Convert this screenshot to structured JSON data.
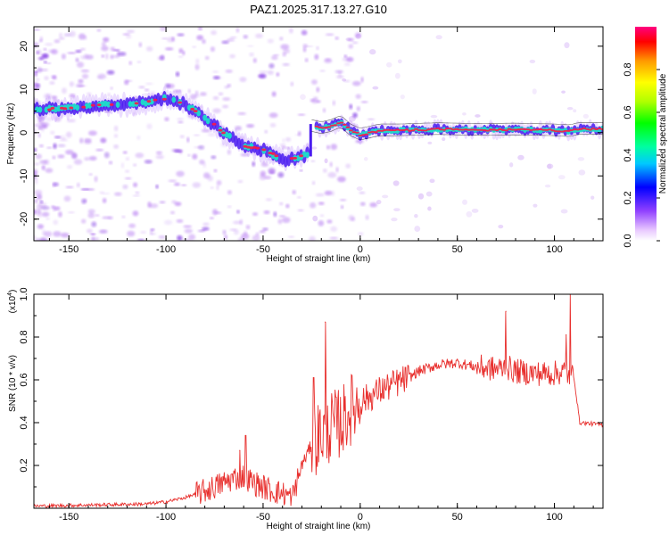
{
  "title": "PAZ1.2025.317.13.27.G10",
  "colors": {
    "snr_line": "#e8302e",
    "track_core": "#ff1744",
    "track_mid": "#19e6c8",
    "track_edge": "#4a1cf0",
    "speckle": "#b070f0",
    "axis": "#000000"
  },
  "colorbar": {
    "label": "Normalized spectral amplitude",
    "range": [
      0,
      1
    ],
    "ticks": [
      "0.0",
      "0.2",
      "0.4",
      "0.6",
      "0.8"
    ],
    "tick_values": [
      0,
      0.2,
      0.4,
      0.6,
      0.8
    ]
  },
  "chart_data": [
    {
      "type": "heatmap",
      "title": "PAZ1.2025.317.13.27.G10",
      "xlabel": "Height of straight line (km)",
      "ylabel": "Frequency (Hz)",
      "xlim": [
        -168,
        125
      ],
      "ylim": [
        -25,
        24.5
      ],
      "xticks": [
        -150,
        -100,
        -50,
        0,
        50,
        100
      ],
      "xtick_labels": [
        "-150",
        "-100",
        "-50",
        "0",
        "50",
        "100"
      ],
      "yticks": [
        -20,
        -10,
        0,
        10,
        20
      ],
      "ytick_labels": [
        "-20",
        "-10",
        "0",
        "10",
        "20"
      ],
      "ridge_track": {
        "x": [
          -168,
          -155,
          -140,
          -130,
          -120,
          -110,
          -100,
          -90,
          -80,
          -70,
          -60,
          -50,
          -45,
          -40,
          -35,
          -30,
          -27,
          -25,
          -20,
          -15,
          -10,
          -5,
          0,
          10,
          20,
          40,
          60,
          80,
          100,
          108,
          112,
          125
        ],
        "freq": [
          5.5,
          5.5,
          6.0,
          6.5,
          6.5,
          7.0,
          8.0,
          6.5,
          3.5,
          0.0,
          -3.0,
          -4.0,
          -5.0,
          -6.5,
          -6.0,
          -5.5,
          -5.0,
          1.5,
          1.0,
          1.5,
          2.5,
          0.5,
          -0.5,
          0.5,
          0.5,
          0.8,
          0.6,
          0.7,
          0.5,
          0.3,
          0.8,
          0.8
        ]
      },
      "colorbar_label": "Normalized spectral amplitude"
    },
    {
      "type": "line",
      "xlabel": "Height of straight line (km)",
      "ylabel": "SNR (10 * v/v)",
      "y_scale_label": "(x10",
      "y_scale_exponent": "4",
      "xlim": [
        -168,
        125
      ],
      "ylim": [
        0,
        1.0
      ],
      "xticks": [
        -150,
        -100,
        -50,
        0,
        50,
        100
      ],
      "xtick_labels": [
        "-150",
        "-100",
        "-50",
        "0",
        "50",
        "100"
      ],
      "yticks": [
        0.2,
        0.4,
        0.6,
        0.8,
        1.0
      ],
      "ytick_labels": [
        "0.2",
        "0.4",
        "0.6",
        "0.8",
        "1.0"
      ],
      "series": [
        {
          "name": "SNR",
          "x": [
            -168,
            -140,
            -110,
            -100,
            -90,
            -80,
            -75,
            -70,
            -65,
            -60,
            -55,
            -50,
            -45,
            -40,
            -35,
            -30,
            -25,
            -20,
            -15,
            -10,
            -5,
            0,
            5,
            10,
            15,
            20,
            25,
            30,
            40,
            50,
            60,
            70,
            75,
            80,
            90,
            100,
            105,
            108,
            110,
            113,
            125
          ],
          "y": [
            0.01,
            0.015,
            0.02,
            0.03,
            0.05,
            0.08,
            0.1,
            0.12,
            0.14,
            0.15,
            0.12,
            0.1,
            0.08,
            0.07,
            0.05,
            0.2,
            0.3,
            0.35,
            0.38,
            0.4,
            0.46,
            0.5,
            0.52,
            0.55,
            0.57,
            0.59,
            0.61,
            0.64,
            0.67,
            0.68,
            0.66,
            0.65,
            0.66,
            0.64,
            0.63,
            0.63,
            0.64,
            0.62,
            0.62,
            0.4,
            0.39
          ]
        }
      ],
      "spikes": [
        {
          "x": -62,
          "y": 0.27
        },
        {
          "x": -59,
          "y": 0.34
        },
        {
          "x": -24,
          "y": 0.61
        },
        {
          "x": -18,
          "y": 0.87
        },
        {
          "x": 75,
          "y": 0.92
        },
        {
          "x": 106,
          "y": 0.81
        },
        {
          "x": 108,
          "y": 1.0
        }
      ]
    }
  ]
}
